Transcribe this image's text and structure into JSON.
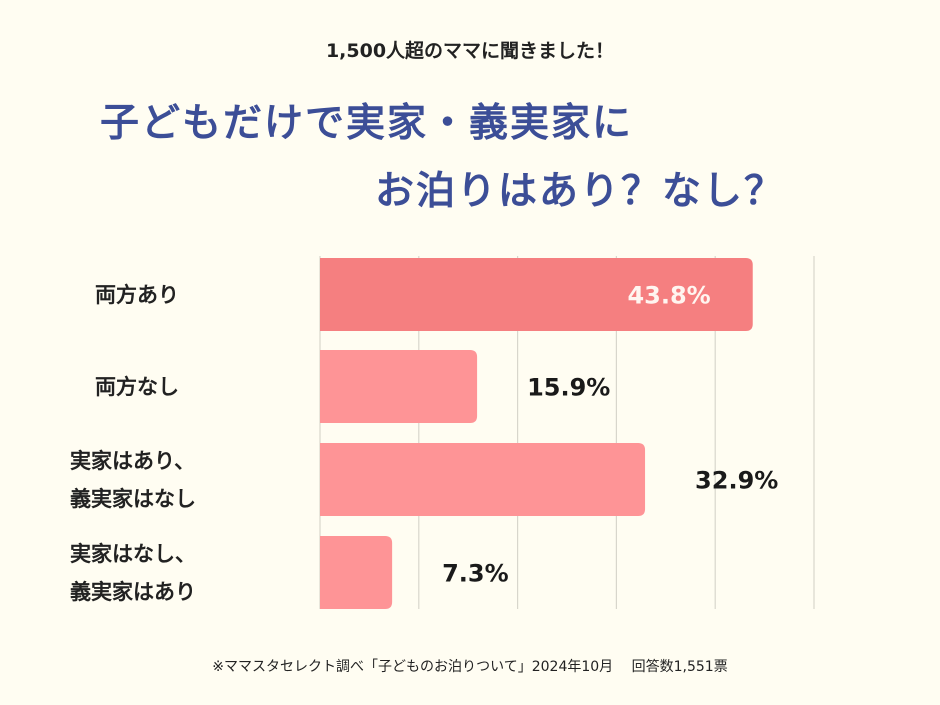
{
  "subtitle": "1,500人超のママに聞きました！",
  "title_line1": "子どもだけで実家・義実家に",
  "title_line2": "お泊りはあり？なし？",
  "footnote": "※ママスタセレクト調べ「子どものお泊りついて」2024年10月　 回答数1,551票",
  "chart_data": {
    "type": "bar",
    "orientation": "horizontal",
    "categories": [
      "両方あり",
      "両方なし",
      "実家はあり、\n義実家はなし",
      "実家はなし、\n義実家はあり"
    ],
    "values": [
      43.8,
      15.9,
      32.9,
      7.3
    ],
    "labels": [
      "43.8%",
      "15.9%",
      "32.9%",
      "7.3%"
    ],
    "xlim": [
      0,
      50
    ],
    "grid": true,
    "colors": {
      "highlight": "#f57f80",
      "normal": "#fe9496"
    }
  }
}
